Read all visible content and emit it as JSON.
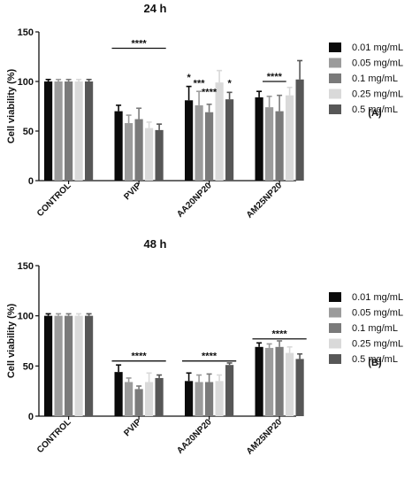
{
  "chart_data": [
    {
      "type": "bar",
      "title": "24 h",
      "ylabel": "Cell viability (%)",
      "xlabel": "",
      "ylim": [
        0,
        150
      ],
      "yticks": [
        "0",
        "50",
        "100",
        "150"
      ],
      "grid": false,
      "legend_position": "right",
      "panel_label": "(A)",
      "categories": [
        "CONTROL",
        "PVIP",
        "AA20NP20",
        "AM25NP20"
      ],
      "series": [
        {
          "name": "0.01 mg/mL",
          "color": "#0a0a0a",
          "values": [
            100,
            70,
            81,
            84
          ],
          "errors": [
            2,
            6,
            14,
            6
          ]
        },
        {
          "name": "0.05 mg/mL",
          "color": "#9b9b9b",
          "values": [
            100,
            58,
            76,
            74
          ],
          "errors": [
            2,
            8,
            14,
            11
          ]
        },
        {
          "name": "0.1 mg/mL",
          "color": "#7a7a7a",
          "values": [
            100,
            62,
            69,
            70
          ],
          "errors": [
            2,
            11,
            8,
            16
          ]
        },
        {
          "name": "0.25 mg/mL",
          "color": "#d9d9d9",
          "values": [
            100,
            53,
            99,
            86
          ],
          "errors": [
            2,
            6,
            12,
            8
          ]
        },
        {
          "name": "0.5 mg/mL",
          "color": "#575757",
          "values": [
            100,
            51,
            82,
            102
          ],
          "errors": [
            2,
            6,
            7,
            19
          ]
        }
      ],
      "annotations": [
        {
          "text": "****",
          "category": "PVIP",
          "span": [
            0,
            4
          ],
          "line": true,
          "y": 133.5
        },
        {
          "text": "*",
          "category": "AA20NP20",
          "series": 0,
          "y": 101
        },
        {
          "text": "***",
          "category": "AA20NP20",
          "series": 1,
          "y": 95
        },
        {
          "text": "****",
          "category": "AA20NP20",
          "series": 2,
          "y": 86
        },
        {
          "text": "*",
          "category": "AA20NP20",
          "series": 4,
          "y": 95
        },
        {
          "text": "****",
          "category": "AM25NP20",
          "span": [
            1,
            2
          ],
          "line": true,
          "y": 100
        }
      ]
    },
    {
      "type": "bar",
      "title": "48 h",
      "ylabel": "Cell viability (%)",
      "xlabel": "",
      "ylim": [
        0,
        150
      ],
      "yticks": [
        "0",
        "50",
        "100",
        "150"
      ],
      "grid": false,
      "legend_position": "right",
      "panel_label": "(B)",
      "categories": [
        "CONTROL",
        "PVIP",
        "AA20NP20",
        "AM25NP20"
      ],
      "series": [
        {
          "name": "0.01 mg/mL",
          "color": "#0a0a0a",
          "values": [
            100,
            44,
            35,
            69
          ],
          "errors": [
            2,
            7,
            8,
            4
          ]
        },
        {
          "name": "0.05 mg/mL",
          "color": "#9b9b9b",
          "values": [
            100,
            34,
            34,
            68
          ],
          "errors": [
            2,
            4,
            7,
            4
          ]
        },
        {
          "name": "0.1 mg/mL",
          "color": "#7a7a7a",
          "values": [
            100,
            27,
            34,
            69
          ],
          "errors": [
            2,
            3,
            8,
            6
          ]
        },
        {
          "name": "0.25 mg/mL",
          "color": "#d9d9d9",
          "values": [
            100,
            34,
            35,
            63
          ],
          "errors": [
            2,
            9,
            6,
            6
          ]
        },
        {
          "name": "0.5 mg/mL",
          "color": "#575757",
          "values": [
            100,
            38,
            51,
            57
          ],
          "errors": [
            2,
            3,
            2,
            5
          ]
        }
      ],
      "annotations": [
        {
          "text": "****",
          "category": "PVIP",
          "span": [
            0,
            4
          ],
          "line": true,
          "y": 55
        },
        {
          "text": "****",
          "category": "AA20NP20",
          "span": [
            0,
            4
          ],
          "line": true,
          "y": 55
        },
        {
          "text": "****",
          "category": "AM25NP20",
          "span": [
            0,
            4
          ],
          "line": true,
          "y": 77
        }
      ]
    }
  ]
}
